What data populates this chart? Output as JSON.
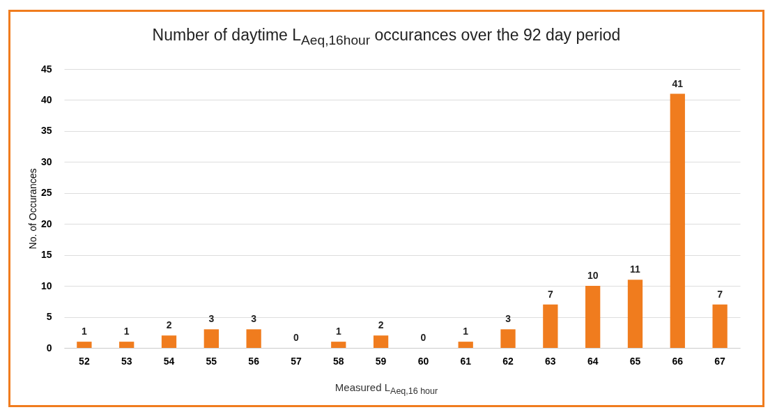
{
  "chart_data": {
    "type": "bar",
    "title": "Number of daytime L$_{Aeq,16hour}$ occurances over the 92 day period",
    "xlabel": "Measured L$_{Aeq,16 hour}$",
    "ylabel": "No. of Occurances",
    "categories": [
      "52",
      "53",
      "54",
      "55",
      "56",
      "57",
      "58",
      "59",
      "60",
      "61",
      "62",
      "63",
      "64",
      "65",
      "66",
      "67"
    ],
    "values": [
      1,
      1,
      2,
      3,
      3,
      0,
      1,
      2,
      0,
      1,
      3,
      7,
      10,
      11,
      41,
      7
    ],
    "color": "#f07c1e",
    "ylim": [
      0,
      45
    ],
    "yticks": [
      0,
      5,
      10,
      15,
      20,
      25,
      30,
      35,
      40,
      45
    ],
    "grid": "y",
    "data_labels": true
  }
}
